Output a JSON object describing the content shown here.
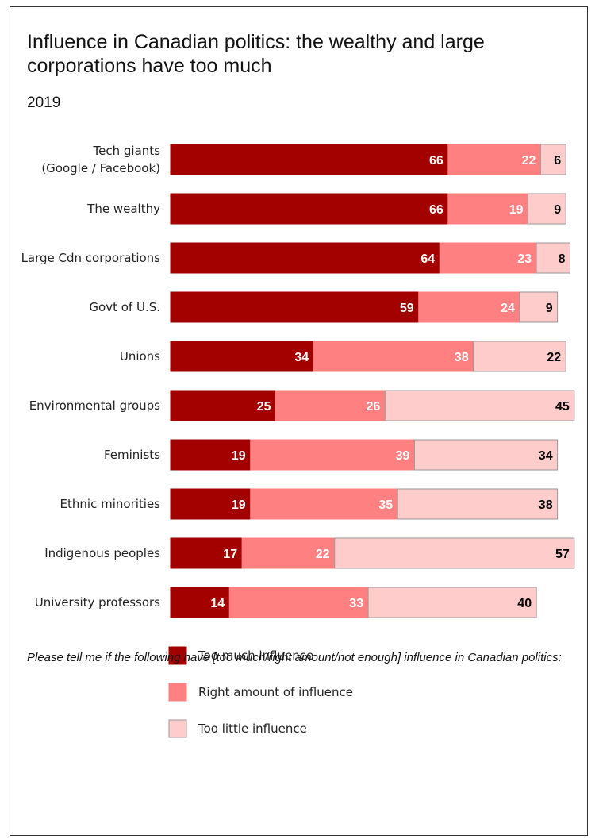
{
  "chart_data": {
    "type": "bar",
    "orientation": "horizontal",
    "stacked": true,
    "title": "Influence in Canadian politics: the wealthy and large corporations have too much",
    "subtitle": "2019",
    "categories": [
      "Tech giants\n(Google / Facebook)",
      "The wealthy",
      "Large Cdn corporations",
      "Govt of U.S.",
      "Unions",
      "Environmental groups",
      "Feminists",
      "Ethnic minorities",
      "Indigenous peoples",
      "University professors"
    ],
    "series": [
      {
        "name": "Too much influence",
        "color": "#a30000",
        "label_color": "#ffffff",
        "values": [
          66,
          66,
          64,
          59,
          34,
          25,
          19,
          19,
          17,
          14
        ]
      },
      {
        "name": "Right amount of influence",
        "color": "#ff8080",
        "label_color": "#ffffff",
        "values": [
          22,
          19,
          23,
          24,
          38,
          26,
          39,
          35,
          22,
          33
        ]
      },
      {
        "name": "Too little influence",
        "color": "#ffcccc",
        "label_color": "#000000",
        "values": [
          6,
          9,
          8,
          9,
          22,
          45,
          34,
          38,
          57,
          40
        ]
      }
    ],
    "legend_position": "bottom",
    "grid": false,
    "xlim": [
      0,
      100
    ],
    "footnote": "Please tell me if the following have [too much/right amount/not enough] influence in Canadian politics:"
  }
}
